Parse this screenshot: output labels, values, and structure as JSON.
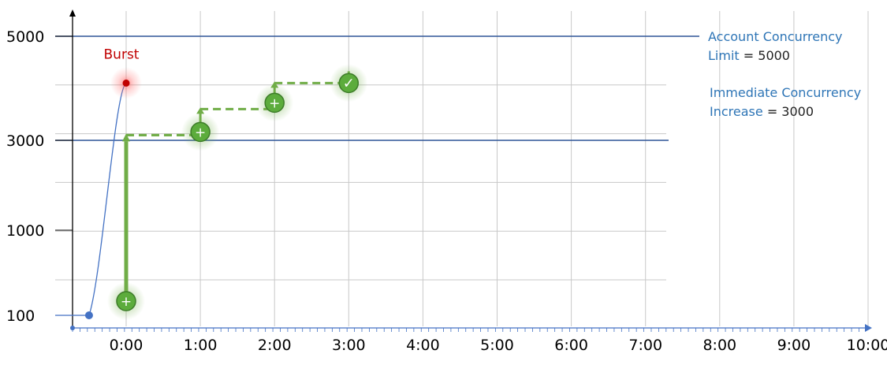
{
  "chart_data": {
    "type": "line",
    "x_ticks": [
      "0:00",
      "1:00",
      "2:00",
      "3:00",
      "4:00",
      "5:00",
      "6:00",
      "7:00",
      "8:00",
      "9:00",
      "10:00"
    ],
    "y_ticks": [
      "100",
      "1000",
      "3000",
      "5000"
    ],
    "series": [
      {
        "values": [
          [
            -0.5,
            100
          ],
          [
            -0.33,
            500
          ],
          [
            -0.15,
            4000
          ],
          [
            0,
            4100
          ]
        ]
      }
    ],
    "steps": [
      {
        "from_x": 0,
        "from_y": 100,
        "to_x": 0,
        "to_y": 3100
      },
      {
        "from_x": 0,
        "from_y": 3100,
        "to_x": 1,
        "to_y": 3600
      },
      {
        "from_x": 1,
        "from_y": 3600,
        "to_x": 2,
        "to_y": 4100
      },
      {
        "from_x": 2,
        "from_y": 4100,
        "to_x": 3,
        "to_y": 4100
      }
    ],
    "markers": [
      {
        "x": 0,
        "y": 100,
        "symbol": "+"
      },
      {
        "x": 1,
        "y": 3100,
        "symbol": "+"
      },
      {
        "x": 2,
        "y": 3600,
        "symbol": "+"
      },
      {
        "x": 3,
        "y": 4100,
        "symbol": "✓"
      }
    ],
    "burst": {
      "label": "Burst",
      "x": 0,
      "y": 4100
    },
    "reference_lines": [
      {
        "y": 5000,
        "label_key": "Account Concurrency Limit",
        "label_value": "= 5000"
      },
      {
        "y": 3000,
        "label_key": "Immediate Concurrency Increase",
        "label_value": "= 3000"
      }
    ],
    "grid": true,
    "colors": {
      "axis": "#000000",
      "grid": "#c8c8c8",
      "ref_line": "#2f5597",
      "curve": "#4472c4",
      "green": "#70ad47",
      "marker_fill": "#5cac3c",
      "burst": "#c00000",
      "label_blue": "#2e75b6"
    }
  }
}
